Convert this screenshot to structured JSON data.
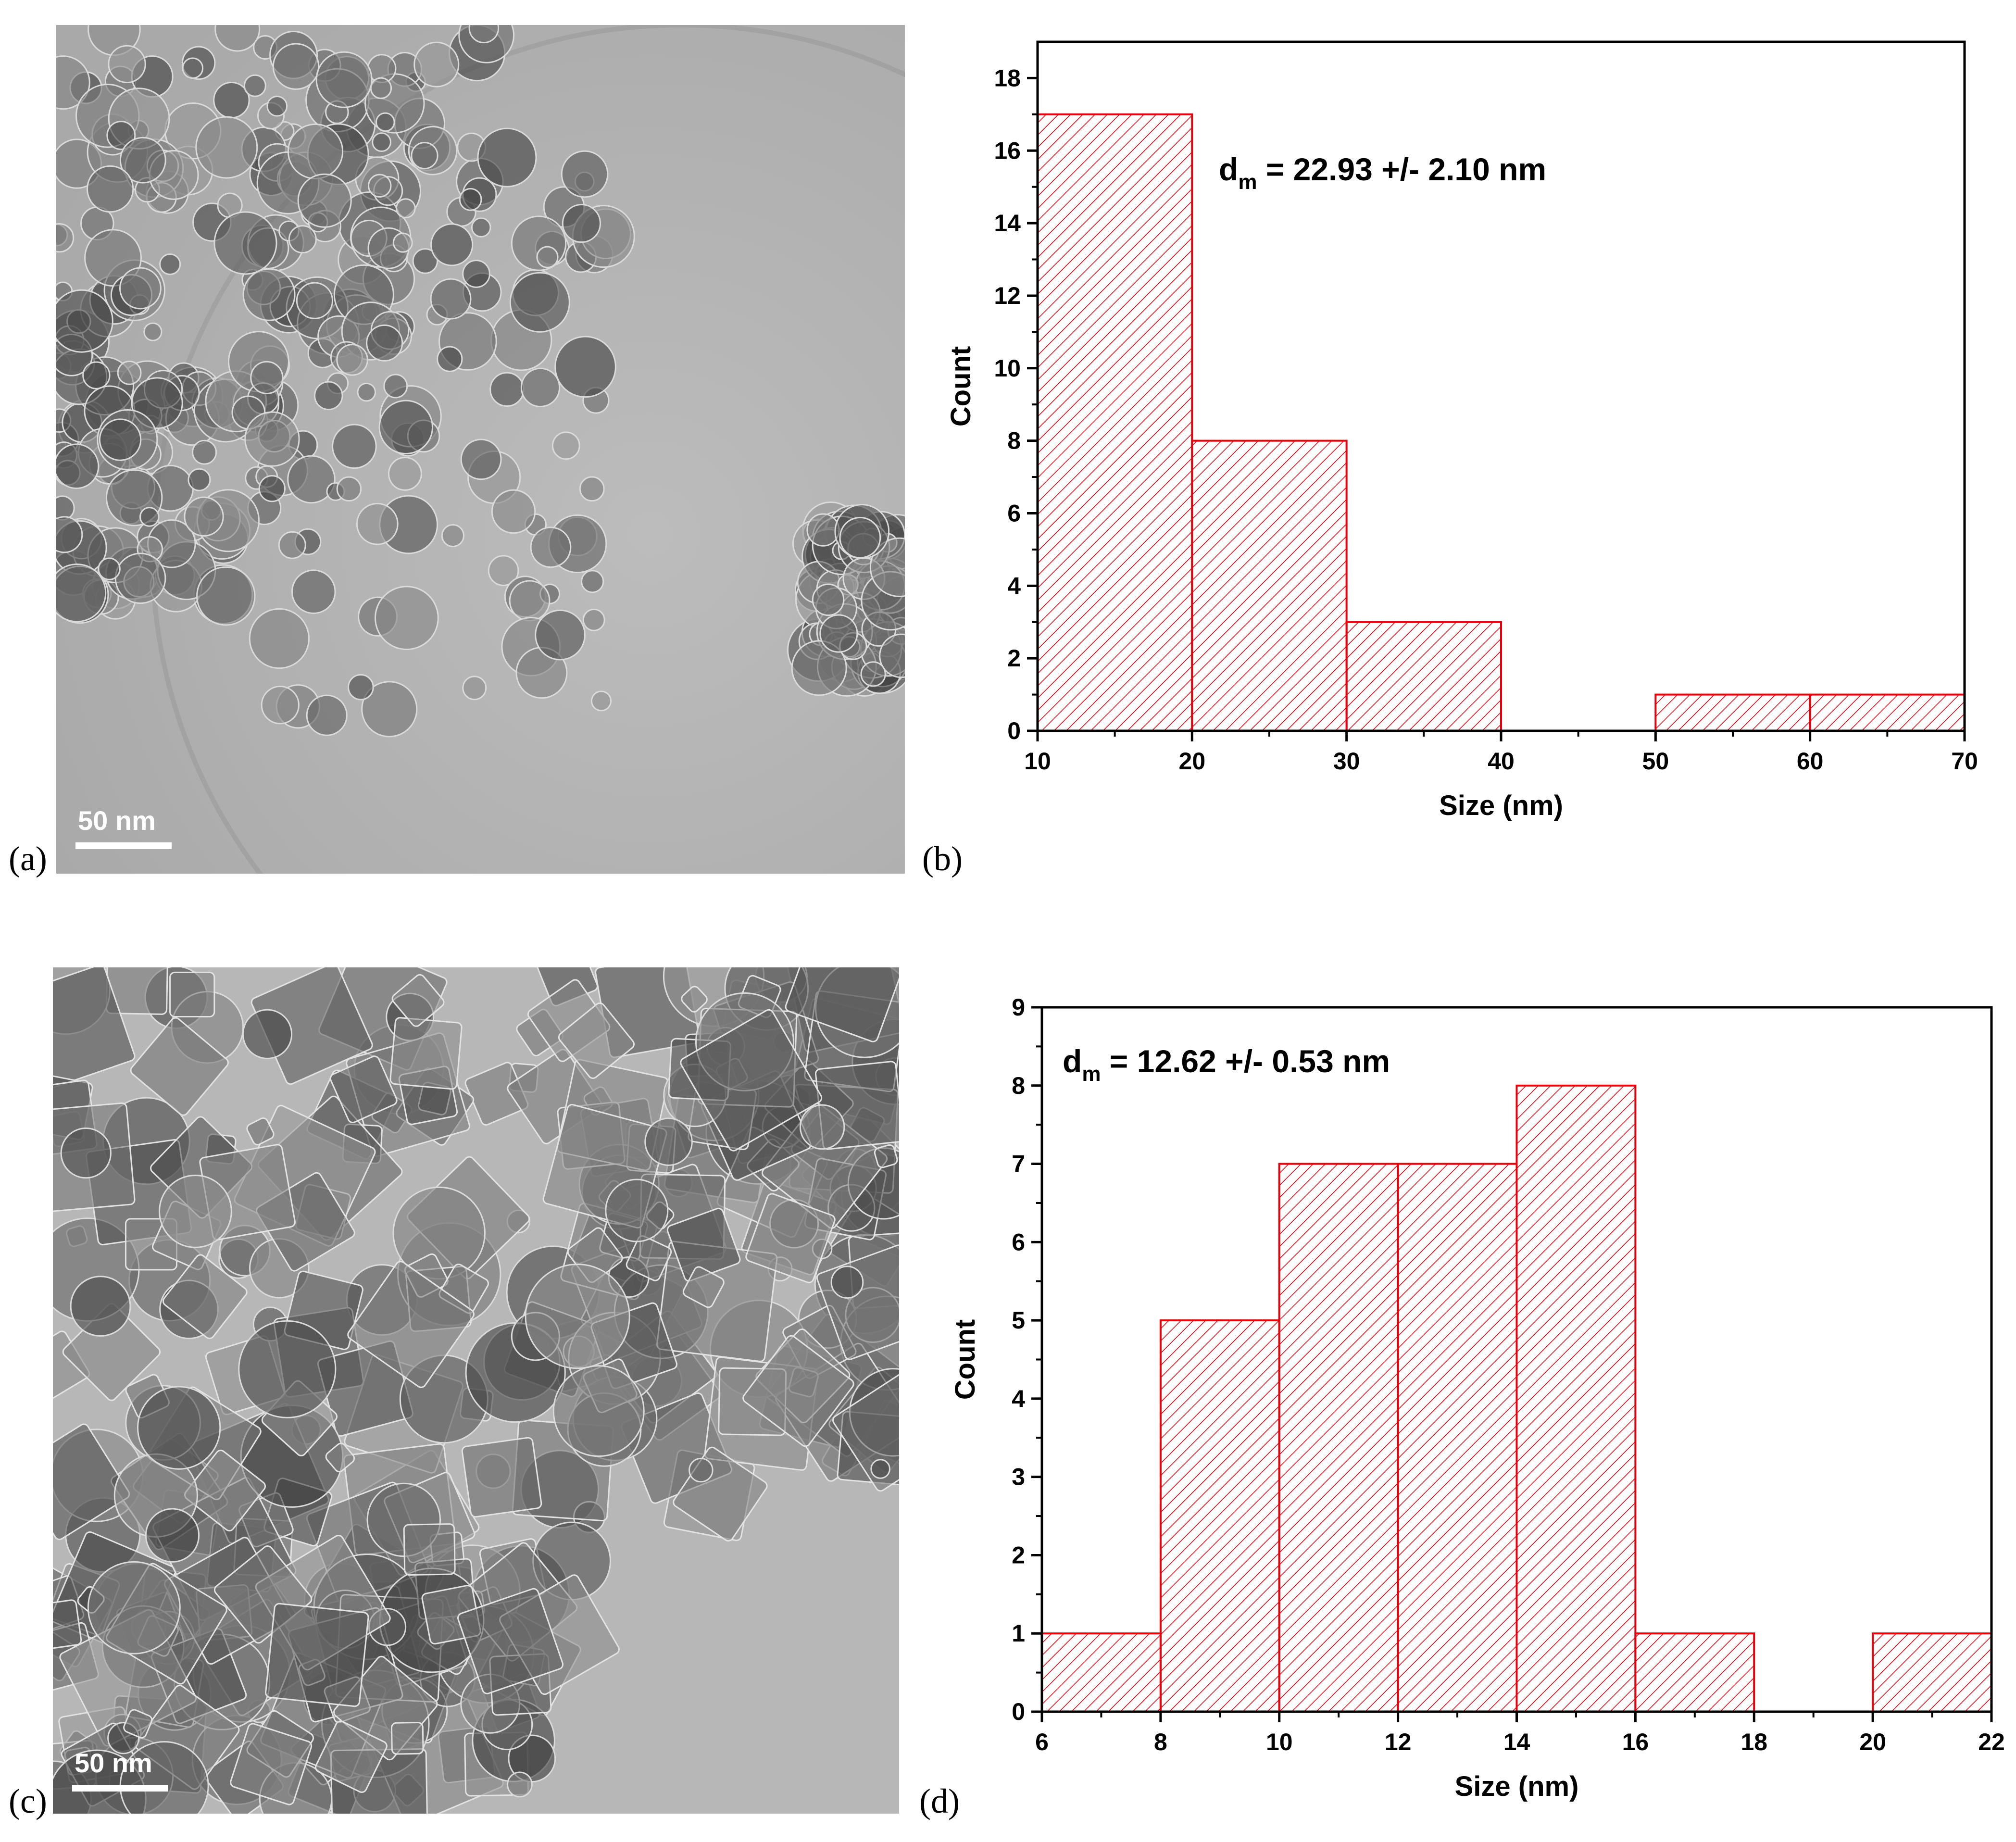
{
  "panels": [
    {
      "id": "a",
      "letter": "(a)",
      "scale_label": "50 nm"
    },
    {
      "id": "b",
      "letter": "(b)"
    },
    {
      "id": "c",
      "letter": "(c)",
      "scale_label": "50 nm"
    },
    {
      "id": "d",
      "letter": "(d)"
    }
  ],
  "chart_data": [
    {
      "type": "bar",
      "panel": "b",
      "bins": [
        [
          10,
          20
        ],
        [
          20,
          30
        ],
        [
          30,
          40
        ],
        [
          40,
          50
        ],
        [
          50,
          60
        ],
        [
          60,
          70
        ]
      ],
      "values": [
        17,
        8,
        3,
        0,
        1,
        1
      ],
      "xlabel": "Size (nm)",
      "ylabel": "Count",
      "xlim": [
        10,
        70
      ],
      "ylim": [
        0,
        19
      ],
      "xticks": [
        10,
        20,
        30,
        40,
        50,
        60,
        70
      ],
      "yticks": [
        0,
        2,
        4,
        6,
        8,
        10,
        12,
        14,
        16,
        18
      ],
      "annotation": {
        "prefix": "d",
        "sub": "m",
        "text": " = 22.93 +/- 2.10 nm"
      },
      "bar_color": "#e8000b",
      "grid": false
    },
    {
      "type": "bar",
      "panel": "d",
      "bins": [
        [
          6,
          8
        ],
        [
          8,
          10
        ],
        [
          10,
          12
        ],
        [
          12,
          14
        ],
        [
          14,
          16
        ],
        [
          16,
          18
        ],
        [
          18,
          20
        ],
        [
          20,
          22
        ]
      ],
      "values": [
        1,
        5,
        7,
        7,
        8,
        1,
        0,
        1
      ],
      "xlabel": "Size (nm)",
      "ylabel": "Count",
      "xlim": [
        6,
        22
      ],
      "ylim": [
        0,
        9
      ],
      "xticks": [
        6,
        8,
        10,
        12,
        14,
        16,
        18,
        20,
        22
      ],
      "yticks": [
        0,
        1,
        2,
        3,
        4,
        5,
        6,
        7,
        8,
        9
      ],
      "annotation": {
        "prefix": "d",
        "sub": "m",
        "text": " = 12.62 +/- 0.53 nm"
      },
      "bar_color": "#e8000b",
      "grid": false
    }
  ]
}
